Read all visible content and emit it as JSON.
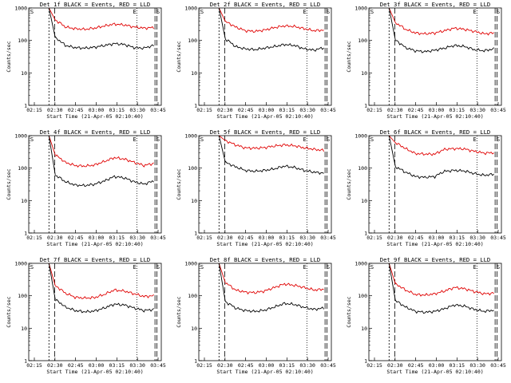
{
  "chart_data": [
    {
      "type": "line",
      "title": "Det 1f BLACK = Events, RED = LLD",
      "xlabel": "Start Time (21-Apr-05 02:10:40)",
      "ylabel": "Counts/sec",
      "x_ticks": [
        "02:15",
        "02:30",
        "02:45",
        "03:00",
        "03:15",
        "03:30",
        "03:45"
      ],
      "y_ticks": [
        "1",
        "10",
        "100",
        "1000"
      ],
      "markers": [
        "S",
        "E",
        "S"
      ],
      "ylim": [
        1,
        1000
      ],
      "log_y": true,
      "series": [
        {
          "name": "LLD",
          "color": "#e00000",
          "values": [
            420,
            260,
            230,
            220,
            240,
            280,
            320,
            300,
            260,
            240,
            250
          ]
        },
        {
          "name": "Events",
          "color": "#000000",
          "values": [
            120,
            70,
            60,
            58,
            62,
            70,
            80,
            75,
            60,
            58,
            70
          ]
        }
      ]
    },
    {
      "type": "line",
      "title": "Det 2f BLACK = Events, RED = LLD",
      "xlabel": "Start Time (21-Apr-05 02:10:40)",
      "ylabel": "Counts/sec",
      "x_ticks": [
        "02:15",
        "02:30",
        "02:45",
        "03:00",
        "03:15",
        "03:30",
        "03:45"
      ],
      "y_ticks": [
        "1",
        "10",
        "100",
        "1000"
      ],
      "markers": [
        "S",
        "E",
        "S"
      ],
      "ylim": [
        1,
        1000
      ],
      "log_y": true,
      "series": [
        {
          "name": "LLD",
          "color": "#e00000",
          "values": [
            380,
            260,
            200,
            190,
            210,
            250,
            280,
            270,
            230,
            200,
            210
          ]
        },
        {
          "name": "Events",
          "color": "#000000",
          "values": [
            110,
            65,
            55,
            52,
            58,
            65,
            75,
            70,
            55,
            50,
            60
          ]
        }
      ]
    },
    {
      "type": "line",
      "title": "Det 3f BLACK = Events, RED = LLD",
      "xlabel": "Start Time (21-Apr-05 02:10:40)",
      "ylabel": "Counts/sec",
      "x_ticks": [
        "02:15",
        "02:30",
        "02:45",
        "03:00",
        "03:15",
        "03:30",
        "03:45"
      ],
      "y_ticks": [
        "1",
        "10",
        "100",
        "1000"
      ],
      "markers": [
        "S",
        "E",
        "S"
      ],
      "ylim": [
        1,
        1000
      ],
      "log_y": true,
      "series": [
        {
          "name": "LLD",
          "color": "#e00000",
          "values": [
            350,
            220,
            170,
            160,
            170,
            200,
            240,
            220,
            190,
            160,
            170
          ]
        },
        {
          "name": "Events",
          "color": "#000000",
          "values": [
            100,
            60,
            48,
            45,
            50,
            58,
            70,
            65,
            52,
            48,
            55
          ]
        }
      ]
    },
    {
      "type": "line",
      "title": "Det 4f BLACK = Events, RED = LLD",
      "xlabel": "Start Time (21-Apr-05 02:10:40)",
      "ylabel": "Counts/sec",
      "x_ticks": [
        "02:15",
        "02:30",
        "02:45",
        "03:00",
        "03:15",
        "03:30",
        "03:45"
      ],
      "y_ticks": [
        "1",
        "10",
        "100",
        "1000"
      ],
      "markers": [
        "S",
        "E",
        "S"
      ],
      "ylim": [
        1,
        1000
      ],
      "log_y": true,
      "series": [
        {
          "name": "LLD",
          "color": "#e00000",
          "values": [
            250,
            150,
            120,
            115,
            125,
            160,
            210,
            190,
            150,
            120,
            140
          ]
        },
        {
          "name": "Events",
          "color": "#000000",
          "values": [
            60,
            38,
            30,
            29,
            32,
            40,
            55,
            50,
            38,
            32,
            40
          ]
        }
      ]
    },
    {
      "type": "line",
      "title": "Det 5f BLACK = Events, RED = LLD",
      "xlabel": "Start Time (21-Apr-05 02:10:40)",
      "ylabel": "Counts/sec",
      "x_ticks": [
        "02:15",
        "02:30",
        "02:45",
        "03:00",
        "03:15",
        "03:30",
        "03:45"
      ],
      "y_ticks": [
        "1",
        "10",
        "100",
        "1000"
      ],
      "markers": [
        "S",
        "E",
        "S"
      ],
      "ylim": [
        1,
        1000
      ],
      "log_y": true,
      "series": [
        {
          "name": "LLD",
          "color": "#e00000",
          "values": [
            700,
            520,
            420,
            410,
            430,
            480,
            520,
            490,
            420,
            380,
            350
          ]
        },
        {
          "name": "Events",
          "color": "#000000",
          "values": [
            150,
            110,
            85,
            80,
            85,
            95,
            115,
            105,
            85,
            75,
            70
          ]
        }
      ]
    },
    {
      "type": "line",
      "title": "Det 6f BLACK = Events, RED = LLD",
      "xlabel": "Start Time (21-Apr-05 02:10:40)",
      "ylabel": "Counts/sec",
      "x_ticks": [
        "02:15",
        "02:30",
        "02:45",
        "03:00",
        "03:15",
        "03:30",
        "03:45"
      ],
      "y_ticks": [
        "1",
        "10",
        "100",
        "1000"
      ],
      "markers": [
        "S",
        "E",
        "S"
      ],
      "ylim": [
        1,
        1000
      ],
      "log_y": true,
      "series": [
        {
          "name": "LLD",
          "color": "#e00000",
          "values": [
            600,
            400,
            280,
            270,
            270,
            380,
            400,
            390,
            330,
            290,
            300
          ]
        },
        {
          "name": "Events",
          "color": "#000000",
          "values": [
            110,
            75,
            55,
            52,
            55,
            80,
            85,
            82,
            68,
            60,
            65
          ]
        }
      ]
    },
    {
      "type": "line",
      "title": "Det 7f BLACK = Events, RED = LLD",
      "xlabel": "Start Time (21-Apr-05 02:10:40)",
      "ylabel": "Counts/sec",
      "x_ticks": [
        "02:15",
        "02:30",
        "02:45",
        "03:00",
        "03:15",
        "03:30",
        "03:45"
      ],
      "y_ticks": [
        "1",
        "10",
        "100",
        "1000"
      ],
      "markers": [
        "S",
        "E",
        "S"
      ],
      "ylim": [
        1,
        1000
      ],
      "log_y": true,
      "series": [
        {
          "name": "LLD",
          "color": "#e00000",
          "values": [
            200,
            120,
            90,
            85,
            88,
            110,
            150,
            140,
            115,
            95,
            100
          ]
        },
        {
          "name": "Events",
          "color": "#000000",
          "values": [
            75,
            45,
            35,
            32,
            34,
            42,
            55,
            52,
            42,
            35,
            38
          ]
        }
      ]
    },
    {
      "type": "line",
      "title": "Det 8f BLACK = Events, RED = LLD",
      "xlabel": "Start Time (21-Apr-05 02:10:40)",
      "ylabel": "Counts/sec",
      "x_ticks": [
        "02:15",
        "02:30",
        "02:45",
        "03:00",
        "03:15",
        "03:30",
        "03:45"
      ],
      "y_ticks": [
        "1",
        "10",
        "100",
        "1000"
      ],
      "markers": [
        "S",
        "E",
        "S"
      ],
      "ylim": [
        1,
        1000
      ],
      "log_y": true,
      "series": [
        {
          "name": "LLD",
          "color": "#e00000",
          "values": [
            250,
            150,
            130,
            125,
            140,
            180,
            230,
            210,
            180,
            150,
            160
          ]
        },
        {
          "name": "Events",
          "color": "#000000",
          "values": [
            65,
            42,
            35,
            33,
            36,
            45,
            58,
            54,
            44,
            38,
            42
          ]
        }
      ]
    },
    {
      "type": "line",
      "title": "Det 9f BLACK = Events, RED = LLD",
      "xlabel": "Start Time (21-Apr-05 02:10:40)",
      "ylabel": "Counts/sec",
      "x_ticks": [
        "02:15",
        "02:30",
        "02:45",
        "03:00",
        "03:15",
        "03:30",
        "03:45"
      ],
      "y_ticks": [
        "1",
        "10",
        "100",
        "1000"
      ],
      "markers": [
        "S",
        "E",
        "S"
      ],
      "ylim": [
        1,
        1000
      ],
      "log_y": true,
      "series": [
        {
          "name": "LLD",
          "color": "#e00000",
          "values": [
            230,
            150,
            110,
            105,
            115,
            140,
            180,
            165,
            135,
            115,
            120
          ]
        },
        {
          "name": "Events",
          "color": "#000000",
          "values": [
            70,
            45,
            33,
            31,
            33,
            40,
            52,
            48,
            38,
            33,
            36
          ]
        }
      ]
    }
  ]
}
